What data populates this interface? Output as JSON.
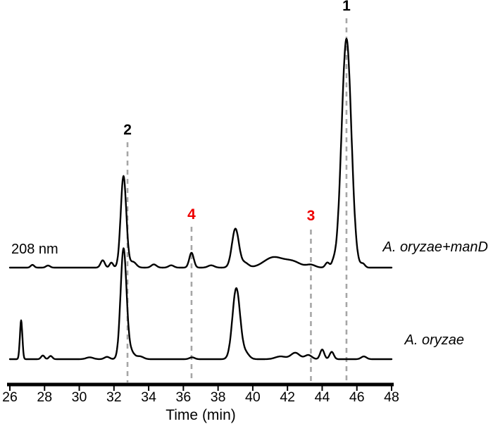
{
  "chart_data": {
    "type": "line",
    "kind": "HPLC chromatogram",
    "title": "",
    "xlabel": "Time (min)",
    "ylabel": "",
    "wavelength_label": "208 nm",
    "x_range": [
      26,
      48
    ],
    "x_ticks": [
      26,
      28,
      30,
      32,
      34,
      36,
      38,
      40,
      42,
      44,
      46,
      48
    ],
    "grid": false,
    "trace_color": "#000000",
    "guide_line_color": "#a6a6a6",
    "annotation_red": "#ee0000",
    "series": [
      {
        "name": "A. oryzae+manD",
        "peaks": [
          {
            "time": 27.3,
            "height": 1.2,
            "width": 0.1
          },
          {
            "time": 28.2,
            "height": 0.9,
            "width": 0.12
          },
          {
            "time": 31.35,
            "height": 3.2,
            "width": 0.12
          },
          {
            "time": 31.85,
            "height": 2.2,
            "width": 0.1
          },
          {
            "time": 32.55,
            "height": 40,
            "width": 0.16
          },
          {
            "time": 33.1,
            "height": 2.5,
            "width": 0.18
          },
          {
            "time": 34.3,
            "height": 1.4,
            "width": 0.15
          },
          {
            "time": 35.3,
            "height": 1.0,
            "width": 0.15
          },
          {
            "time": 36.47,
            "height": 6.5,
            "width": 0.13
          },
          {
            "time": 37.6,
            "height": 1.0,
            "width": 0.18
          },
          {
            "time": 39.0,
            "height": 17,
            "width": 0.2
          },
          {
            "time": 39.55,
            "height": 2.0,
            "width": 0.2
          },
          {
            "time": 41.2,
            "height": 4.5,
            "width": 0.55
          },
          {
            "time": 42.3,
            "height": 2.5,
            "width": 0.45
          },
          {
            "time": 43.35,
            "height": 1.2,
            "width": 0.25
          },
          {
            "time": 44.3,
            "height": 2.2,
            "width": 0.12
          },
          {
            "time": 44.65,
            "height": 1.8,
            "width": 0.1
          },
          {
            "time": 45.4,
            "height": 100,
            "width": 0.28
          },
          {
            "time": 46.35,
            "height": 1.6,
            "width": 0.12
          }
        ]
      },
      {
        "name": "A. oryzae",
        "peaks": [
          {
            "time": 26.65,
            "height": 17,
            "width": 0.07
          },
          {
            "time": 27.9,
            "height": 1.6,
            "width": 0.1
          },
          {
            "time": 28.35,
            "height": 1.4,
            "width": 0.1
          },
          {
            "time": 30.6,
            "height": 0.8,
            "width": 0.2
          },
          {
            "time": 31.6,
            "height": 1.0,
            "width": 0.15
          },
          {
            "time": 32.55,
            "height": 48,
            "width": 0.17
          },
          {
            "time": 32.95,
            "height": 3.5,
            "width": 0.2
          },
          {
            "time": 33.5,
            "height": 1.2,
            "width": 0.2
          },
          {
            "time": 36.5,
            "height": 0.8,
            "width": 0.15
          },
          {
            "time": 39.05,
            "height": 31,
            "width": 0.22
          },
          {
            "time": 39.6,
            "height": 2.5,
            "width": 0.2
          },
          {
            "time": 41.6,
            "height": 1.2,
            "width": 0.3
          },
          {
            "time": 42.45,
            "height": 2.8,
            "width": 0.25
          },
          {
            "time": 43.2,
            "height": 1.8,
            "width": 0.2
          },
          {
            "time": 44.0,
            "height": 4.2,
            "width": 0.12
          },
          {
            "time": 44.55,
            "height": 3.2,
            "width": 0.12
          },
          {
            "time": 46.4,
            "height": 1.2,
            "width": 0.15
          }
        ]
      }
    ],
    "peak_annotations": [
      {
        "label": "1",
        "time": 45.4,
        "color": "#000000"
      },
      {
        "label": "2",
        "time": 32.78,
        "color": "#000000"
      },
      {
        "label": "4",
        "time": 36.47,
        "color": "#ee0000"
      },
      {
        "label": "3",
        "time": 43.35,
        "color": "#ee0000"
      }
    ]
  }
}
